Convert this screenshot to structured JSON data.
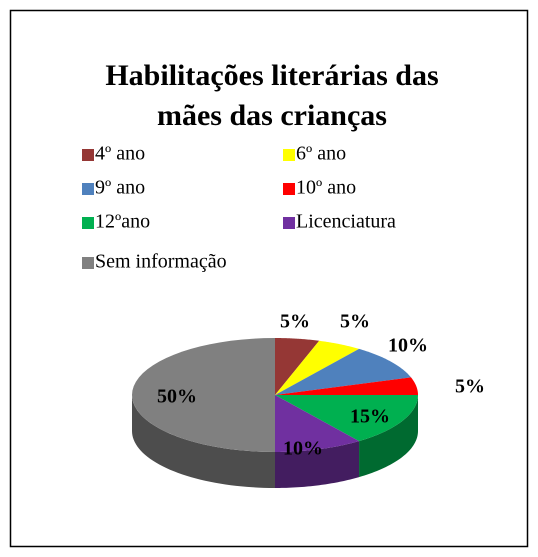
{
  "chart_data": {
    "type": "pie",
    "title": "Habilitações literárias das mães das crianças",
    "categories": [
      "4º ano",
      "6º ano",
      "9º ano",
      "10º ano",
      "12ºano",
      "Licenciatura",
      "Sem informação"
    ],
    "values": [
      5,
      5,
      10,
      5,
      15,
      10,
      50
    ],
    "value_labels": [
      "5%",
      "5%",
      "10%",
      "5%",
      "15%",
      "10%",
      "50%"
    ],
    "colors": [
      "#953735",
      "#ffff00",
      "#4f81bd",
      "#ff0000",
      "#00b050",
      "#7030a0",
      "#808080"
    ],
    "legend": "top"
  }
}
